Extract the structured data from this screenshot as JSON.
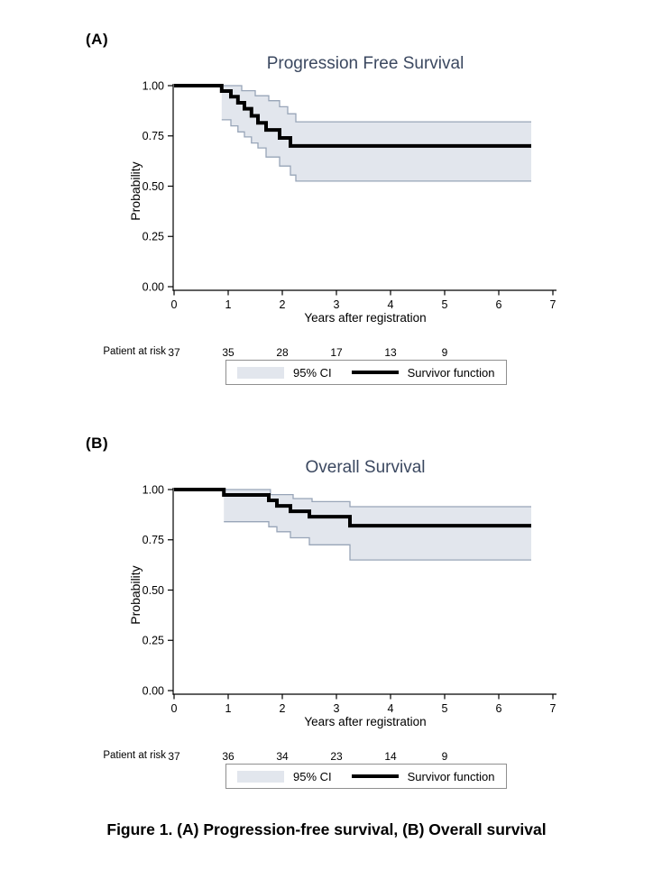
{
  "figure": {
    "caption": "Figure 1. (A) Progression-free survival, (B) Overall survival"
  },
  "colors": {
    "ci_fill": "#e2e6ed",
    "ci_edge": "#98a5b8",
    "survivor_line": "#000000",
    "title": "#3b4860",
    "axis": "#000000",
    "legend_border": "#8f8f8f"
  },
  "chart_data": [
    {
      "type": "line",
      "panel_tag": "(A)",
      "title": "Progression Free Survival",
      "xlabel": "Years after registration",
      "ylabel": "Probability",
      "xlim": [
        0,
        7
      ],
      "ylim": [
        0,
        1
      ],
      "grid": false,
      "legend_position": "bottom",
      "xtick_values": [
        0,
        1,
        2,
        3,
        4,
        5,
        6,
        7
      ],
      "xtick_labels": [
        "0",
        "1",
        "2",
        "3",
        "4",
        "5",
        "6",
        "7"
      ],
      "ytick_values": [
        0,
        0.25,
        0.5,
        0.75,
        1
      ],
      "ytick_labels": [
        "0.00",
        "0.25",
        "0.50",
        "0.75",
        "1.00"
      ],
      "t_end": 6.6,
      "series": [
        {
          "name": "Survivor function",
          "style": "step",
          "points": [
            [
              0,
              1.0
            ],
            [
              0.88,
              0.973
            ],
            [
              1.05,
              0.945
            ],
            [
              1.18,
              0.915
            ],
            [
              1.3,
              0.885
            ],
            [
              1.43,
              0.85
            ],
            [
              1.55,
              0.815
            ],
            [
              1.7,
              0.78
            ],
            [
              1.95,
              0.74
            ],
            [
              2.15,
              0.7
            ]
          ]
        },
        {
          "name": "95% CI upper",
          "style": "step",
          "points": [
            [
              0.88,
              1.0
            ],
            [
              1.25,
              0.975
            ],
            [
              1.5,
              0.95
            ],
            [
              1.75,
              0.925
            ],
            [
              1.95,
              0.895
            ],
            [
              2.1,
              0.86
            ],
            [
              2.25,
              0.82
            ]
          ]
        },
        {
          "name": "95% CI lower",
          "style": "step",
          "points": [
            [
              0.88,
              0.83
            ],
            [
              1.05,
              0.8
            ],
            [
              1.18,
              0.77
            ],
            [
              1.3,
              0.745
            ],
            [
              1.43,
              0.715
            ],
            [
              1.55,
              0.69
            ],
            [
              1.7,
              0.645
            ],
            [
              1.95,
              0.6
            ],
            [
              2.15,
              0.555
            ],
            [
              2.25,
              0.525
            ]
          ]
        }
      ],
      "at_risk": {
        "label": "Patient at risk",
        "times": [
          0,
          1,
          2,
          3,
          4,
          5
        ],
        "counts": [
          "37",
          "35",
          "28",
          "17",
          "13",
          "9"
        ]
      },
      "legend": {
        "ci_label": "95% CI",
        "line_label": "Survivor function"
      }
    },
    {
      "type": "line",
      "panel_tag": "(B)",
      "title": "Overall Survival",
      "xlabel": "Years after registration",
      "ylabel": "Probability",
      "xlim": [
        0,
        7
      ],
      "ylim": [
        0,
        1
      ],
      "grid": false,
      "legend_position": "bottom",
      "xtick_values": [
        0,
        1,
        2,
        3,
        4,
        5,
        6,
        7
      ],
      "xtick_labels": [
        "0",
        "1",
        "2",
        "3",
        "4",
        "5",
        "6",
        "7"
      ],
      "ytick_values": [
        0,
        0.25,
        0.5,
        0.75,
        1
      ],
      "ytick_labels": [
        "0.00",
        "0.25",
        "0.50",
        "0.75",
        "1.00"
      ],
      "t_end": 6.6,
      "series": [
        {
          "name": "Survivor function",
          "style": "step",
          "points": [
            [
              0,
              1.0
            ],
            [
              0.92,
              0.973
            ],
            [
              1.75,
              0.946
            ],
            [
              1.9,
              0.919
            ],
            [
              2.15,
              0.892
            ],
            [
              2.5,
              0.865
            ],
            [
              3.25,
              0.82
            ]
          ]
        },
        {
          "name": "95% CI upper",
          "style": "step",
          "points": [
            [
              0.92,
              1.0
            ],
            [
              1.78,
              0.975
            ],
            [
              2.2,
              0.955
            ],
            [
              2.55,
              0.94
            ],
            [
              3.25,
              0.915
            ]
          ]
        },
        {
          "name": "95% CI lower",
          "style": "step",
          "points": [
            [
              0.92,
              0.84
            ],
            [
              1.75,
              0.815
            ],
            [
              1.9,
              0.79
            ],
            [
              2.15,
              0.76
            ],
            [
              2.5,
              0.725
            ],
            [
              3.25,
              0.65
            ]
          ]
        }
      ],
      "at_risk": {
        "label": "Patient at risk",
        "times": [
          0,
          1,
          2,
          3,
          4,
          5
        ],
        "counts": [
          "37",
          "36",
          "34",
          "23",
          "14",
          "9"
        ]
      },
      "legend": {
        "ci_label": "95% CI",
        "line_label": "Survivor function"
      }
    }
  ]
}
